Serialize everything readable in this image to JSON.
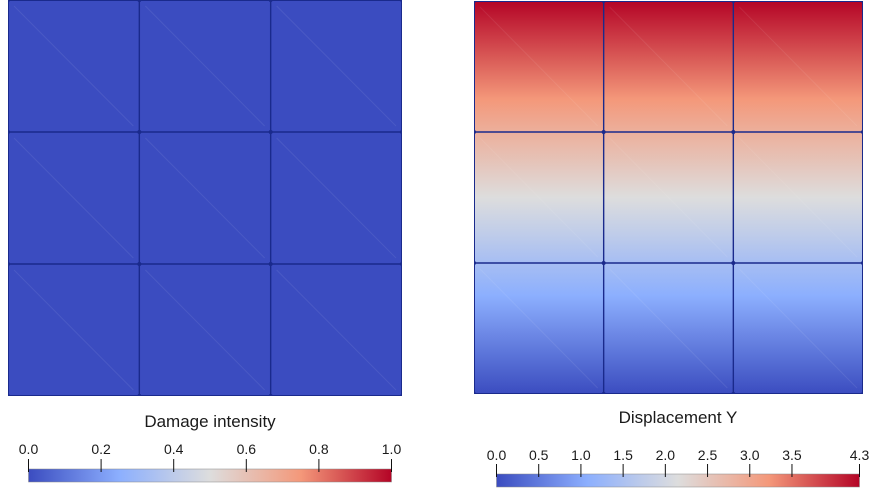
{
  "panels": [
    {
      "id": "damage",
      "title": "Damage intensity",
      "ticks": [
        "0.0",
        "0.2",
        "0.4",
        "0.6",
        "0.8",
        "1.0"
      ],
      "tick_values": [
        0.0,
        0.2,
        0.4,
        0.6,
        0.8,
        1.0
      ],
      "range": [
        0.0,
        1.0
      ],
      "field": "uniform",
      "field_value": 0.0,
      "grid": [
        3,
        3
      ]
    },
    {
      "id": "displacement",
      "title": "Displacement Y",
      "ticks": [
        "0.0",
        "0.5",
        "1.0",
        "1.5",
        "2.0",
        "2.5",
        "3.0",
        "3.5",
        "4.3"
      ],
      "tick_values": [
        0.0,
        0.5,
        1.0,
        1.5,
        2.0,
        2.5,
        3.0,
        3.5,
        4.3
      ],
      "range": [
        0.0,
        4.3
      ],
      "field": "vertical-gradient",
      "field_min_at": "bottom",
      "grid": [
        3,
        3
      ]
    }
  ],
  "colormap": {
    "name": "cool-to-warm",
    "stops": [
      "#3b4cc0",
      "#8caffe",
      "#dddddd",
      "#f4987a",
      "#b40426"
    ]
  },
  "mesh_line_color": "#1a2a8c"
}
